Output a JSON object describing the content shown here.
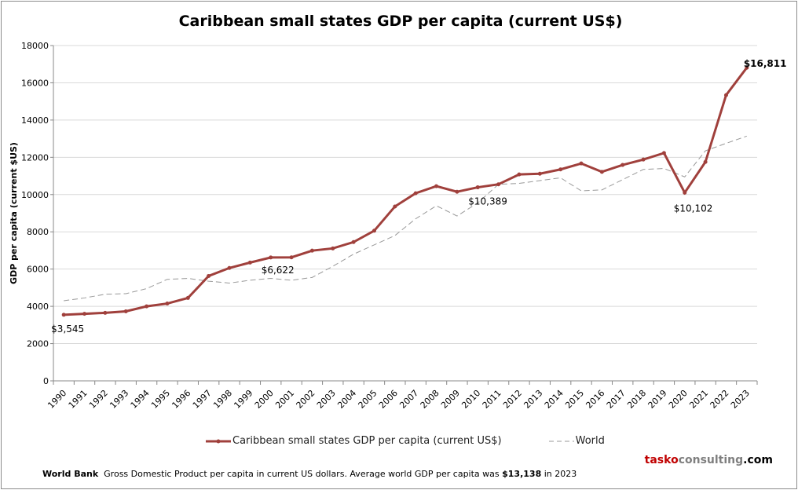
{
  "chart_data": {
    "type": "line",
    "title": "Caribbean small states GDP per capita (current US$)",
    "ylabel": "GDP per capita (current $US)",
    "xlabel": "",
    "ylim": [
      0,
      18000
    ],
    "yticks": [
      0,
      2000,
      4000,
      6000,
      8000,
      10000,
      12000,
      14000,
      16000,
      18000
    ],
    "grid": true,
    "legend_position": "bottom",
    "categories": [
      "1990",
      "1991",
      "1992",
      "1993",
      "1994",
      "1995",
      "1996",
      "1997",
      "1998",
      "1999",
      "2000",
      "2001",
      "2002",
      "2003",
      "2004",
      "2005",
      "2006",
      "2007",
      "2008",
      "2009",
      "2010",
      "2011",
      "2012",
      "2013",
      "2014",
      "2015",
      "2016",
      "2017",
      "2018",
      "2019",
      "2020",
      "2021",
      "2022",
      "2023"
    ],
    "series": [
      {
        "name": "Caribbean small states GDP per capita (current US$)",
        "color": "#a0403c",
        "style": "solid-markers",
        "values": [
          3545,
          3600,
          3650,
          3730,
          4000,
          4150,
          4450,
          5630,
          6060,
          6350,
          6622,
          6630,
          6990,
          7110,
          7450,
          8060,
          9360,
          10070,
          10450,
          10150,
          10389,
          10550,
          11080,
          11120,
          11350,
          11670,
          11220,
          11590,
          11880,
          12230,
          10102,
          11750,
          15340,
          16811
        ]
      },
      {
        "name": "World",
        "color": "#999999",
        "style": "dashed",
        "values": [
          4300,
          4450,
          4650,
          4680,
          4950,
          5450,
          5500,
          5350,
          5250,
          5400,
          5500,
          5400,
          5550,
          6150,
          6800,
          7300,
          7800,
          8700,
          9400,
          8850,
          9550,
          10550,
          10600,
          10750,
          10900,
          10200,
          10250,
          10800,
          11350,
          11400,
          10950,
          12350,
          12750,
          13138
        ]
      }
    ],
    "annotations": [
      {
        "year": "1990",
        "text": "$3,545"
      },
      {
        "year": "2000",
        "text": "$6,622"
      },
      {
        "year": "2010",
        "text": "$10,389"
      },
      {
        "year": "2020",
        "text": "$10,102"
      },
      {
        "year": "2023",
        "text": "$16,811",
        "bold": true
      }
    ]
  },
  "brand": {
    "part1": "tasko",
    "part2": "consulting",
    "part3": ".com",
    "color1": "#c00000",
    "color2": "#7f7f7f"
  },
  "footer": {
    "source": "World Bank",
    "text": "Gross Domestic Product per capita in current US dollars.  Average world GDP per capita was ",
    "highlight": "$13,138",
    "tail": " in 2023"
  }
}
